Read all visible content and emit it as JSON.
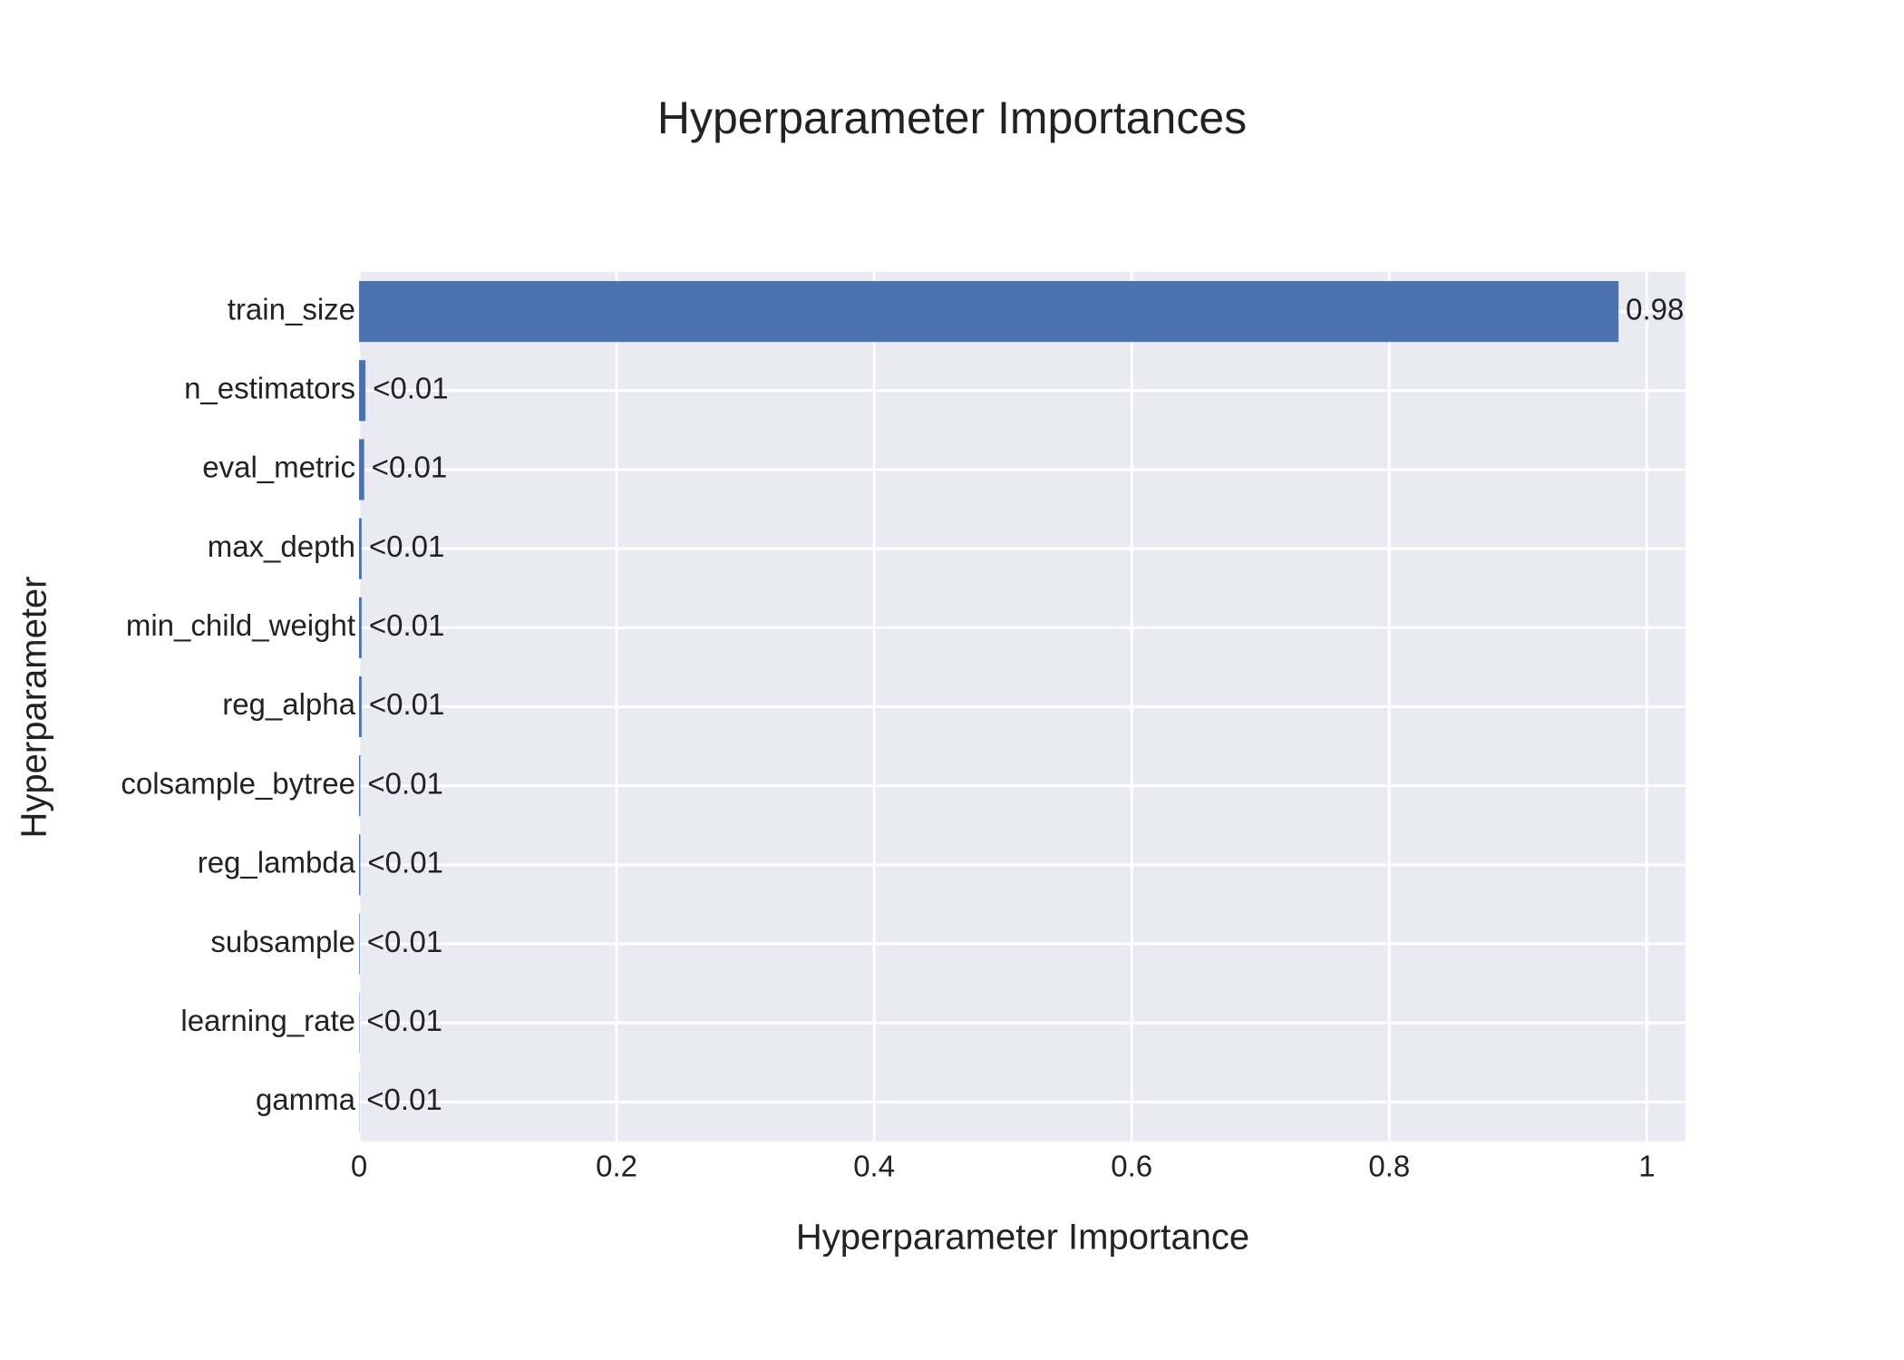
{
  "chart_data": {
    "type": "bar",
    "orientation": "horizontal",
    "title": "Hyperparameter Importances",
    "x_label": "Hyperparameter Importance",
    "y_label": "Hyperparameter",
    "categories": [
      "train_size",
      "n_estimators",
      "eval_metric",
      "max_depth",
      "min_child_weight",
      "reg_alpha",
      "colsample_bytree",
      "reg_lambda",
      "subsample",
      "learning_rate",
      "gamma"
    ],
    "values": [
      0.978,
      0.005,
      0.004,
      0.002,
      0.002,
      0.002,
      0.001,
      0.001,
      0.0005,
      0.0003,
      0.0002
    ],
    "value_labels": [
      "0.98",
      "<0.01",
      "<0.01",
      "<0.01",
      "<0.01",
      "<0.01",
      "<0.01",
      "<0.01",
      "<0.01",
      "<0.01",
      "<0.01"
    ],
    "color": "#4c72b0",
    "xlim": [
      0,
      1.03
    ],
    "xticks": [
      0,
      0.2,
      0.4,
      0.6,
      0.8,
      1
    ],
    "grid": true
  }
}
